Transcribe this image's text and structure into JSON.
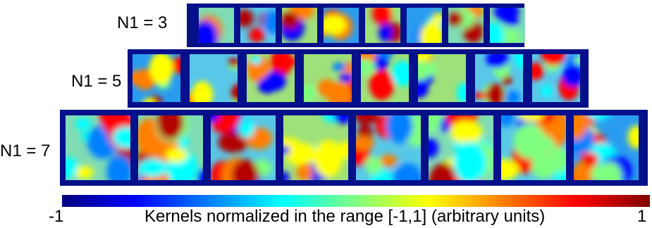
{
  "rows": [
    {
      "label": "N1 = 3",
      "kernel_count": 8
    },
    {
      "label": "N1 = 5",
      "kernel_count": 8
    },
    {
      "label": "N1 = 7",
      "kernel_count": 8
    }
  ],
  "colorbar": {
    "min_label": "-1",
    "max_label": "1",
    "caption": "Kernels normalized in the range [-1,1] (arbitrary units)",
    "colors": [
      "#00007f",
      "#0000ff",
      "#007fff",
      "#00ffff",
      "#7fff7f",
      "#ffff00",
      "#ff7f00",
      "#ff0000",
      "#7f0000"
    ]
  },
  "colors": {
    "frame": "#06108a"
  }
}
